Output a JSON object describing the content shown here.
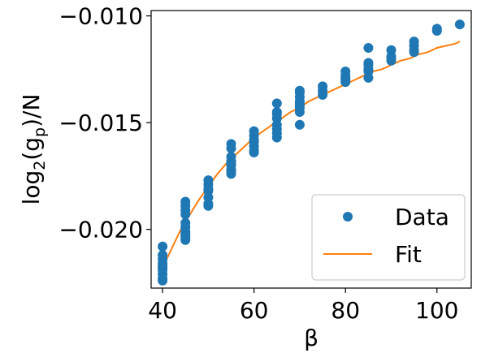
{
  "chart_data": {
    "type": "scatter",
    "xlabel": "β",
    "ylabel_base": "log",
    "ylabel_sub": "2",
    "ylabel_paren_open": "(g",
    "ylabel_sub2": "p",
    "ylabel_tail": ")/N",
    "xlim": [
      37.5,
      107.5
    ],
    "ylim": [
      -0.02275,
      -0.00975
    ],
    "xticks": [
      40,
      60,
      80,
      100
    ],
    "xtick_labels": [
      "40",
      "60",
      "80",
      "100"
    ],
    "yticks": [
      -0.02,
      -0.015,
      -0.01
    ],
    "ytick_labels": [
      "−0.020",
      "−0.015",
      "−0.010"
    ],
    "grid": false,
    "legend_position": "lower-right",
    "colors": {
      "data": "#1f77b4",
      "fit": "#ff7f0e"
    },
    "series": [
      {
        "name": "Data",
        "kind": "scatter",
        "x": [
          40,
          40,
          40,
          40,
          40,
          40,
          40,
          40,
          40,
          40,
          45,
          45,
          45,
          45,
          45,
          45,
          45,
          45,
          45,
          45,
          45,
          50,
          50,
          50,
          50,
          50,
          50,
          50,
          55,
          55,
          55,
          55,
          55,
          55,
          55,
          55,
          55,
          60,
          60,
          60,
          60,
          60,
          60,
          60,
          65,
          65,
          65,
          65,
          65,
          65,
          65,
          65,
          70,
          70,
          70,
          70,
          70,
          70,
          70,
          70,
          70,
          75,
          75,
          75,
          80,
          80,
          80,
          80,
          80,
          85,
          85,
          85,
          85,
          85,
          85,
          90,
          90,
          90,
          90,
          95,
          95,
          95,
          95,
          100,
          100,
          105
        ],
        "y": [
          -0.0208,
          -0.0212,
          -0.0214,
          -0.0216,
          -0.0217,
          -0.0218,
          -0.0219,
          -0.0221,
          -0.0223,
          -0.0224,
          -0.0187,
          -0.0189,
          -0.0191,
          -0.0193,
          -0.0197,
          -0.0199,
          -0.0201,
          -0.0202,
          -0.0203,
          -0.0204,
          -0.0205,
          -0.0177,
          -0.0179,
          -0.0181,
          -0.0182,
          -0.0185,
          -0.0188,
          -0.0189,
          -0.016,
          -0.0162,
          -0.0166,
          -0.0168,
          -0.0169,
          -0.017,
          -0.0172,
          -0.0173,
          -0.0174,
          -0.0154,
          -0.0156,
          -0.0158,
          -0.0159,
          -0.0161,
          -0.0163,
          -0.0164,
          -0.0141,
          -0.0145,
          -0.0146,
          -0.0148,
          -0.0151,
          -0.0153,
          -0.0155,
          -0.0157,
          -0.0135,
          -0.0136,
          -0.0138,
          -0.014,
          -0.0141,
          -0.0142,
          -0.0143,
          -0.0145,
          -0.0151,
          -0.0133,
          -0.0135,
          -0.0137,
          -0.0126,
          -0.0128,
          -0.0129,
          -0.013,
          -0.0131,
          -0.0115,
          -0.0122,
          -0.0123,
          -0.0125,
          -0.0126,
          -0.0129,
          -0.0116,
          -0.0119,
          -0.012,
          -0.0121,
          -0.0112,
          -0.0114,
          -0.0116,
          -0.0117,
          -0.0106,
          -0.0107,
          -0.0104
        ]
      },
      {
        "name": "Fit",
        "kind": "line",
        "x": [
          40,
          42,
          44,
          46,
          48,
          50,
          52,
          54,
          56,
          58,
          60,
          62,
          64,
          66,
          68,
          70,
          72,
          74,
          76,
          78,
          80,
          82,
          84,
          86,
          88,
          90,
          92,
          94,
          96,
          98,
          100,
          102,
          104,
          105
        ],
        "y": [
          -0.0218,
          -0.0209,
          -0.02,
          -0.0193,
          -0.0186,
          -0.018,
          -0.0174,
          -0.0169,
          -0.0165,
          -0.0161,
          -0.0157,
          -0.0154,
          -0.0151,
          -0.0148,
          -0.0145,
          -0.0143,
          -0.014,
          -0.0138,
          -0.0136,
          -0.0134,
          -0.0132,
          -0.013,
          -0.0128,
          -0.0126,
          -0.0125,
          -0.0123,
          -0.0121,
          -0.012,
          -0.0118,
          -0.0117,
          -0.0115,
          -0.0114,
          -0.0113,
          -0.0112
        ]
      }
    ]
  }
}
